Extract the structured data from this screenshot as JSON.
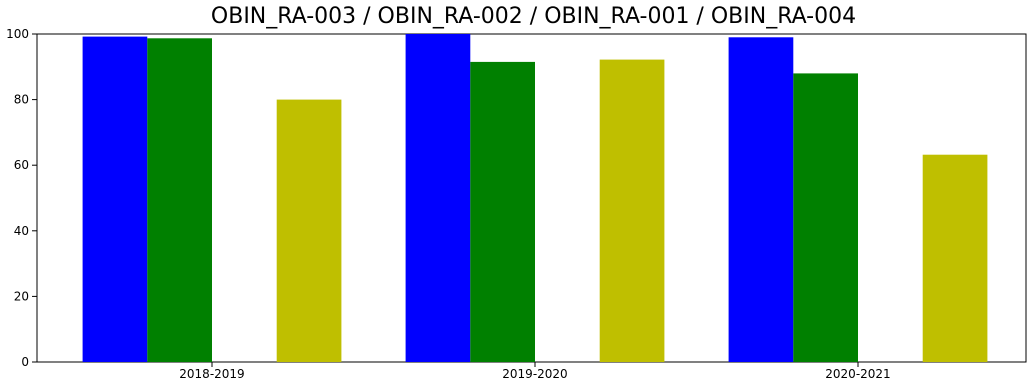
{
  "chart_data": {
    "type": "bar",
    "title": "OBIN_RA-003 / OBIN_RA-002 / OBIN_RA-001 / OBIN_RA-004",
    "categories": [
      "2018-2019",
      "2019-2020",
      "2020-2021"
    ],
    "series": [
      {
        "values": [
          99.2,
          100.0,
          99.0
        ],
        "color": "#0000ff"
      },
      {
        "values": [
          98.7,
          91.5,
          88.0
        ],
        "color": "#008000"
      },
      {
        "values": [
          0,
          0,
          0
        ],
        "color": "#00bfbf"
      },
      {
        "values": [
          80.0,
          92.2,
          63.2
        ],
        "color": "#bfbf00"
      }
    ],
    "ylim": [
      0,
      100
    ],
    "yticks": [
      0,
      20,
      40,
      60,
      80,
      100
    ],
    "grid": false,
    "legend": "none"
  }
}
